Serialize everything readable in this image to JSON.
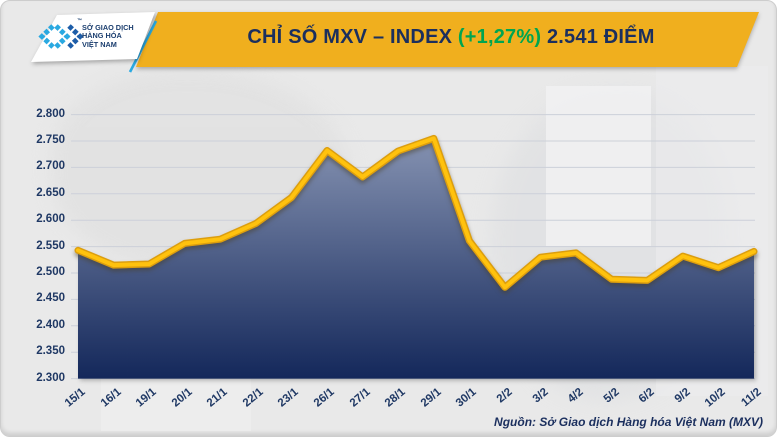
{
  "header": {
    "banner_color": "#F0AF1E",
    "title_part1": "CHỈ SỐ MXV – INDEX ",
    "title_change": "(+1,27%)",
    "title_part2": " 2.541 ĐIỂM",
    "title_text_color": "#1B2F5E",
    "title_change_color": "#00A550",
    "logo": {
      "line1": "SỞ GIAO DỊCH",
      "line2": "HÀNG HÓA",
      "line3": "VIỆT NAM",
      "tm": "™",
      "accent_color": "#2AA9E1"
    }
  },
  "footer": {
    "source": "Nguồn: Sở Giao dịch Hàng hóa Việt Nam (MXV)"
  },
  "chart_data": {
    "type": "area",
    "title": "CHỈ SỐ MXV – INDEX (+1,27%) 2.541 ĐIỂM",
    "categories": [
      "15/1",
      "16/1",
      "19/1",
      "20/1",
      "21/1",
      "22/1",
      "23/1",
      "26/1",
      "27/1",
      "28/1",
      "29/1",
      "30/1",
      "2/2",
      "3/2",
      "4/2",
      "5/2",
      "6/2",
      "9/2",
      "10/2",
      "11/2"
    ],
    "values": [
      2543,
      2515,
      2517,
      2556,
      2564,
      2594,
      2643,
      2732,
      2682,
      2731,
      2755,
      2561,
      2473,
      2530,
      2538,
      2488,
      2486,
      2532,
      2510,
      2541
    ],
    "last_value_label": "2.541",
    "change_percent_label": "+1,27%",
    "ylim": [
      2300,
      2800
    ],
    "y_ticks": [
      "2.800",
      "2.750",
      "2.700",
      "2.650",
      "2.600",
      "2.550",
      "2.500",
      "2.450",
      "2.400",
      "2.350",
      "2.300"
    ],
    "xlabel": "",
    "ylabel": "",
    "grid": "horizontal",
    "legend": "none",
    "line_color": "#FFC20E",
    "line_edge_color": "#DC9E0E",
    "fill_gradient_top": "#8693B2",
    "fill_gradient_bottom": "#13275A",
    "gridline_color": "#CCD0D9",
    "tick_label_color": "#1F3864"
  }
}
